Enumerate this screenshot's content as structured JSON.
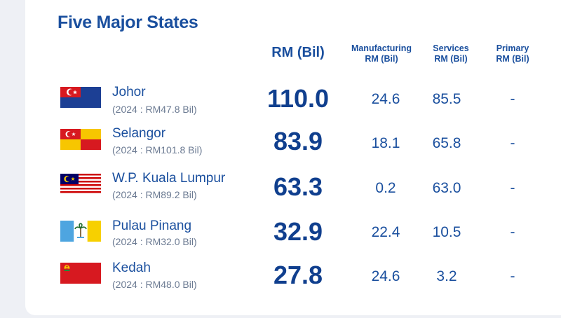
{
  "title": "Five Major States",
  "headers": {
    "total": "RM (Bil)",
    "manufacturing_line1": "Manufacturing",
    "manufacturing_line2": "RM (Bil)",
    "services_line1": "Services",
    "services_line2": "RM (Bil)",
    "primary_line1": "Primary",
    "primary_line2": "RM (Bil)"
  },
  "rows": [
    {
      "state": "Johor",
      "sub": "(2024 : RM47.8 Bil)",
      "total": "110.0",
      "manufacturing": "24.6",
      "services": "85.5",
      "primary": "-"
    },
    {
      "state": "Selangor",
      "sub": "(2024 : RM101.8 Bil)",
      "total": "83.9",
      "manufacturing": "18.1",
      "services": "65.8",
      "primary": "-"
    },
    {
      "state": "W.P. Kuala Lumpur",
      "sub": "(2024 : RM89.2 Bil)",
      "total": "63.3",
      "manufacturing": "0.2",
      "services": "63.0",
      "primary": "-"
    },
    {
      "state": "Pulau Pinang",
      "sub": "(2024 : RM32.0 Bil)",
      "total": "32.9",
      "manufacturing": "22.4",
      "services": "10.5",
      "primary": "-"
    },
    {
      "state": "Kedah",
      "sub": "(2024 : RM48.0 Bil)",
      "total": "27.8",
      "manufacturing": "24.6",
      "services": "3.2",
      "primary": "-"
    }
  ],
  "flags": [
    {
      "icon": "johor-flag-icon",
      "colors": [
        "#d71920",
        "#1c3f94"
      ]
    },
    {
      "icon": "selangor-flag-icon",
      "colors": [
        "#d71920",
        "#f7c600"
      ]
    },
    {
      "icon": "kuala-lumpur-flag-icon",
      "colors": [
        "#cc0001",
        "#ffffff",
        "#010066",
        "#ffcc00"
      ]
    },
    {
      "icon": "pulau-pinang-flag-icon",
      "colors": [
        "#4ea5e0",
        "#ffffff",
        "#f7d000"
      ]
    },
    {
      "icon": "kedah-flag-icon",
      "colors": [
        "#d71920",
        "#f7c600"
      ]
    }
  ]
}
